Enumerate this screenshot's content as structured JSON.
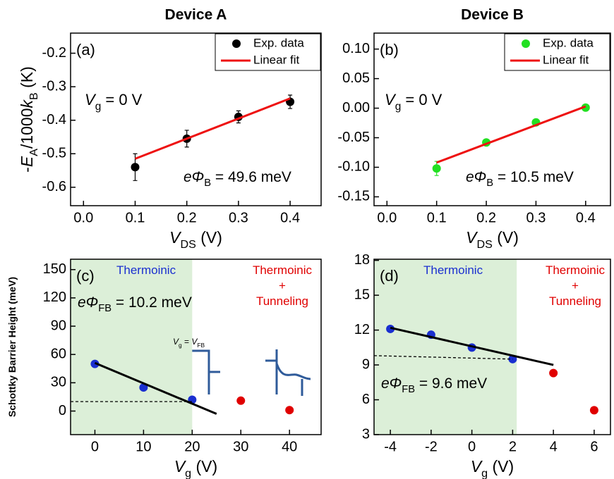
{
  "chart_data": [
    {
      "type": "scatter",
      "title": "Device A",
      "panel_label": "(a)",
      "x_label": [
        {
          "text": "V",
          "italic": true
        },
        {
          "text": "DS",
          "sub": true
        },
        {
          "text": " (V)"
        }
      ],
      "y_label": [
        {
          "text": "-"
        },
        {
          "text": "E",
          "italic": true
        },
        {
          "text": "A",
          "sub": true
        },
        {
          "text": "/1000"
        },
        {
          "text": "k",
          "italic": true
        },
        {
          "text": "B",
          "sub": true
        },
        {
          "text": " (K)"
        }
      ],
      "xlim": [
        -0.025,
        0.46
      ],
      "xticks": [
        {
          "value": 0,
          "label": "0.0"
        },
        0.1,
        0.2,
        0.3,
        0.4
      ],
      "ylim": [
        -0.655,
        -0.14
      ],
      "yticks": [
        -0.6,
        -0.5,
        -0.4,
        -0.3,
        -0.2
      ],
      "legend": "upper right",
      "series": [
        {
          "name": "Exp. data",
          "style": "markers",
          "color": "#000000",
          "x": [
            0.1,
            0.2,
            0.3,
            0.4
          ],
          "values": [
            -0.54,
            -0.455,
            -0.39,
            -0.345
          ],
          "errors": [
            0.04,
            0.025,
            0.018,
            0.02
          ]
        },
        {
          "name": "Linear fit",
          "style": "line",
          "color": "#ee1111",
          "x": [
            0.1,
            0.4
          ],
          "values": [
            -0.515,
            -0.335
          ]
        }
      ],
      "annotations": [
        {
          "color": "#000000",
          "parts": [
            {
              "text": "V",
              "italic": true
            },
            {
              "text": "g",
              "sub": true
            },
            {
              "text": " = 0 V"
            }
          ]
        },
        {
          "color": "#000000",
          "parts": [
            {
              "text": "eΦ",
              "italic": true
            },
            {
              "text": "B",
              "sub": true
            },
            {
              "text": " = 49.6 meV"
            }
          ]
        }
      ]
    },
    {
      "type": "scatter",
      "title": "Device B",
      "panel_label": "(b)",
      "x_label": [
        {
          "text": "V",
          "italic": true
        },
        {
          "text": "DS",
          "sub": true
        },
        {
          "text": " (V)"
        }
      ],
      "xlim": [
        -0.026,
        0.45
      ],
      "xticks": [
        {
          "value": 0,
          "label": "0.0"
        },
        0.1,
        0.2,
        0.3,
        0.4
      ],
      "ylim": [
        -0.165,
        0.127
      ],
      "yticks": [
        -0.15,
        {
          "value": -0.1,
          "label": "-0.10"
        },
        -0.05,
        {
          "value": 0,
          "label": "0.00"
        },
        0.05,
        {
          "value": 0.1,
          "label": "0.10"
        }
      ],
      "legend": "upper right",
      "series": [
        {
          "name": "Exp. data",
          "style": "markers",
          "color": "#22e022",
          "x": [
            0.1,
            0.2,
            0.3,
            0.4
          ],
          "values": [
            -0.102,
            -0.058,
            -0.024,
            0.001
          ],
          "errors": [
            0.012,
            0.004,
            0.003,
            0.003
          ]
        },
        {
          "name": "Linear fit",
          "style": "line",
          "color": "#ee1111",
          "x": [
            0.1,
            0.4
          ],
          "values": [
            -0.092,
            0.003
          ]
        }
      ],
      "annotations": [
        {
          "color": "#000000",
          "parts": [
            {
              "text": "V",
              "italic": true
            },
            {
              "text": "g",
              "sub": true
            },
            {
              "text": " = 0 V"
            }
          ]
        },
        {
          "color": "#000000",
          "parts": [
            {
              "text": "eΦ",
              "italic": true
            },
            {
              "text": "B",
              "sub": true
            },
            {
              "text": " = 10.5 meV"
            }
          ]
        }
      ]
    },
    {
      "type": "scatter",
      "panel_label": "(c)",
      "x_label": [
        {
          "text": "V",
          "italic": true
        },
        {
          "text": "g",
          "sub": true
        },
        {
          "text": " (V)"
        }
      ],
      "y_label": [
        {
          "text": "Schottky Barrier Height (meV)"
        }
      ],
      "xlim": [
        -5,
        46.5
      ],
      "xticks": [
        0,
        10,
        20,
        30,
        40
      ],
      "ylim": [
        -25,
        161
      ],
      "yticks": [
        0,
        30,
        60,
        90,
        120,
        150
      ],
      "shade_x": [
        -5,
        20
      ],
      "shade_color": "#dcefd8",
      "series": [
        {
          "style": "markers",
          "color": "#1a2fd0",
          "x": [
            0,
            10,
            20
          ],
          "values": [
            50,
            25,
            12
          ]
        },
        {
          "style": "markers",
          "color": "#e00000",
          "x": [
            30,
            40
          ],
          "values": [
            11,
            1
          ]
        },
        {
          "style": "line",
          "color": "#000000",
          "x": [
            0,
            25
          ],
          "values": [
            51,
            -3
          ]
        },
        {
          "style": "dashed",
          "color": "#000000",
          "x": [
            -5,
            20
          ],
          "values": [
            10,
            10
          ]
        }
      ],
      "annotations": [
        {
          "color": "#1a2fd0",
          "parts": [
            {
              "text": "Thermoinic"
            }
          ]
        },
        {
          "color": "#e00000",
          "parts": [
            {
              "text": "Thermoinic"
            }
          ]
        },
        {
          "color": "#e00000",
          "parts": [
            {
              "text": "+"
            }
          ]
        },
        {
          "color": "#e00000",
          "parts": [
            {
              "text": "Tunneling"
            }
          ]
        },
        {
          "color": "#000000",
          "parts": [
            {
              "text": "eΦ",
              "italic": true
            },
            {
              "text": "FB",
              "sub": true
            },
            {
              "text": " = 10.2 meV"
            }
          ]
        },
        {
          "color": "#000000",
          "parts": [
            {
              "text": "V",
              "italic": true
            },
            {
              "text": "g",
              "sub": true
            },
            {
              "text": " = "
            },
            {
              "text": "V",
              "italic": true
            },
            {
              "text": "FB",
              "sub": true
            }
          ]
        }
      ]
    },
    {
      "type": "scatter",
      "panel_label": "(d)",
      "x_label": [
        {
          "text": "V",
          "italic": true
        },
        {
          "text": "g",
          "sub": true
        },
        {
          "text": " (V)"
        }
      ],
      "xlim": [
        -4.8,
        6.8
      ],
      "xticks": [
        -4,
        -2,
        0,
        2,
        4,
        6
      ],
      "ylim": [
        3,
        18.1
      ],
      "yticks": [
        3,
        6,
        9,
        12,
        15,
        18
      ],
      "shade_x": [
        -4.8,
        2.2
      ],
      "shade_color": "#dcefd8",
      "series": [
        {
          "style": "markers",
          "color": "#1a2fd0",
          "x": [
            -4,
            -2,
            0,
            2
          ],
          "values": [
            12.1,
            11.6,
            10.5,
            9.5
          ]
        },
        {
          "style": "markers",
          "color": "#e00000",
          "x": [
            4,
            6
          ],
          "values": [
            8.3,
            5.1
          ]
        },
        {
          "style": "line",
          "color": "#000000",
          "x": [
            -4,
            4
          ],
          "values": [
            12.2,
            9.0
          ]
        },
        {
          "style": "dashed",
          "color": "#000000",
          "x": [
            -4.8,
            2
          ],
          "values": [
            9.8,
            9.5
          ]
        }
      ],
      "annotations": [
        {
          "color": "#1a2fd0",
          "parts": [
            {
              "text": "Thermoinic"
            }
          ]
        },
        {
          "color": "#e00000",
          "parts": [
            {
              "text": "Thermoinic"
            }
          ]
        },
        {
          "color": "#e00000",
          "parts": [
            {
              "text": "+"
            }
          ]
        },
        {
          "color": "#e00000",
          "parts": [
            {
              "text": "Tunneling"
            }
          ]
        },
        {
          "color": "#000000",
          "parts": [
            {
              "text": "eΦ",
              "italic": true
            },
            {
              "text": "FB",
              "sub": true
            },
            {
              "text": " = 9.6 meV"
            }
          ]
        }
      ]
    }
  ]
}
